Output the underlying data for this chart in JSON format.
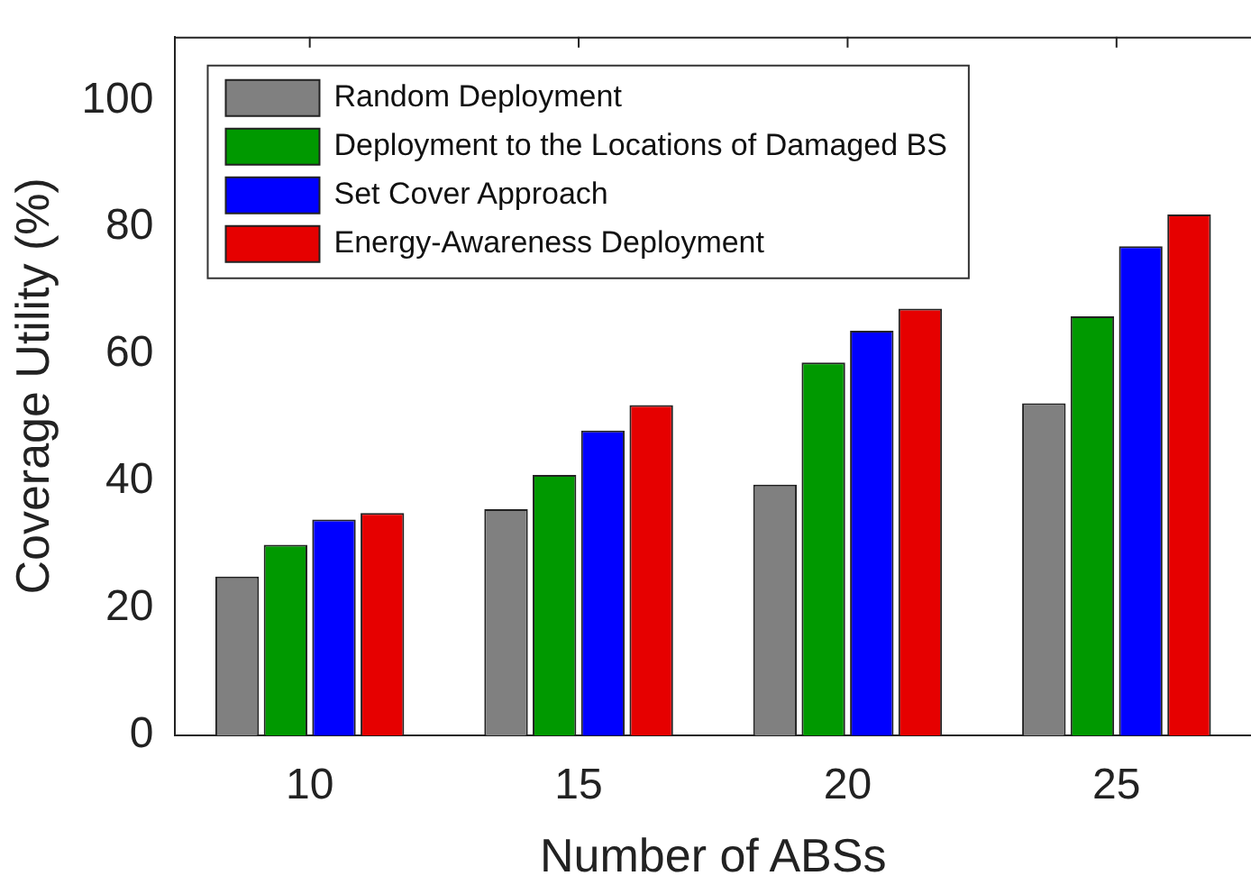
{
  "chart_data": {
    "type": "bar",
    "xlabel": "Number of ABSs",
    "ylabel": "Coverage Utility (%)",
    "categories": [
      "10",
      "15",
      "20",
      "25"
    ],
    "series": [
      {
        "name": "Random Deployment",
        "color": "#808080",
        "values": [
          25,
          35.6,
          39.5,
          52.3
        ]
      },
      {
        "name": "Deployment to the Locations of Damaged BS",
        "color": "#009900",
        "values": [
          30,
          41,
          58.7,
          66
        ]
      },
      {
        "name": "Set Cover Approach",
        "color": "#0000ff",
        "values": [
          34,
          48,
          63.7,
          77
        ]
      },
      {
        "name": "Energy-Awareness Deployment",
        "color": "#e60000",
        "values": [
          35,
          52,
          67.2,
          82
        ]
      }
    ],
    "ylim": [
      0,
      110
    ],
    "yticks": [
      0,
      20,
      40,
      60,
      80,
      100
    ],
    "grid": false,
    "legend": "top left"
  }
}
